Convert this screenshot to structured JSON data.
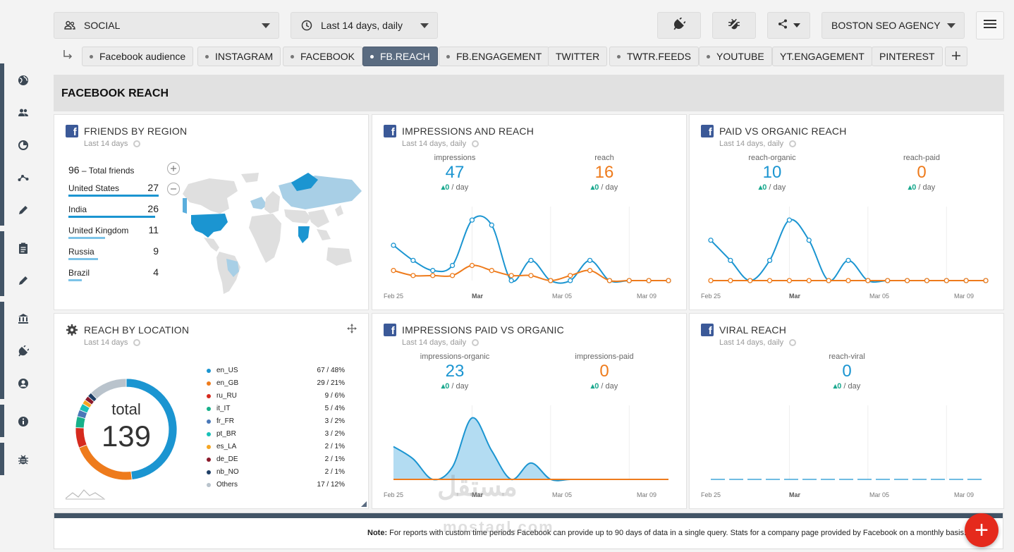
{
  "topbar": {
    "group_select": "SOCIAL",
    "period_select": "Last 14 days, daily",
    "agency_select": "BOSTON SEO AGENCY"
  },
  "tabs": [
    {
      "label": "Facebook audience",
      "dot": true,
      "active": false
    },
    {
      "label": "INSTAGRAM",
      "dot": true,
      "active": false
    },
    {
      "label": "FACEBOOK",
      "dot": true,
      "active": false
    },
    {
      "label": "FB.REACH",
      "dot": true,
      "active": true
    },
    {
      "label": "FB.ENGAGEMENT",
      "dot": true,
      "active": false
    },
    {
      "label": "TWITTER",
      "dot": false,
      "active": false
    },
    {
      "label": "TWTR.FEEDS",
      "dot": true,
      "active": false
    },
    {
      "label": "YOUTUBE",
      "dot": true,
      "active": false
    },
    {
      "label": "YT.ENGAGEMENT",
      "dot": false,
      "active": false
    },
    {
      "label": "PINTEREST",
      "dot": false,
      "active": false
    }
  ],
  "section_title": "FACEBOOK REACH",
  "panels": {
    "friends": {
      "title": "FRIENDS BY REGION",
      "sub": "Last 14 days",
      "total_value": "96",
      "total_label": "– Total friends",
      "countries": [
        {
          "name": "United States",
          "value": "27",
          "share": 1.0
        },
        {
          "name": "India",
          "value": "26",
          "share": 0.96
        },
        {
          "name": "United Kingdom",
          "value": "11",
          "share": 0.41
        },
        {
          "name": "Russia",
          "value": "9",
          "share": 0.33
        },
        {
          "name": "Brazil",
          "value": "4",
          "share": 0.15
        }
      ]
    },
    "impressions": {
      "title": "IMPRESSIONS AND REACH",
      "sub": "Last 14 days, daily",
      "m1_label": "impressions",
      "m1_value": "47",
      "m1_chg": "▴0",
      "m1_unit": " / day",
      "m2_label": "reach",
      "m2_value": "16",
      "m2_chg": "▴0",
      "m2_unit": " / day"
    },
    "paidorg": {
      "title": "PAID VS ORGANIC REACH",
      "sub": "Last 14 days, daily",
      "m1_label": "reach-organic",
      "m1_value": "10",
      "m1_chg": "▴0",
      "m1_unit": " / day",
      "m2_label": "reach-paid",
      "m2_value": "0",
      "m2_chg": "▴0",
      "m2_unit": " / day"
    },
    "location": {
      "title": "REACH BY LOCATION",
      "sub": "Last 14 days",
      "total_label": "total",
      "total_value": "139",
      "legend": [
        {
          "name": "en_US",
          "value": "67 / 48%",
          "color": "#1b95d1"
        },
        {
          "name": "en_GB",
          "value": "29 / 21%",
          "color": "#ee7b1c"
        },
        {
          "name": "ru_RU",
          "value": "9 / 6%",
          "color": "#d62a1e"
        },
        {
          "name": "it_IT",
          "value": "5 / 4%",
          "color": "#17b08a"
        },
        {
          "name": "fr_FR",
          "value": "3 / 2%",
          "color": "#4a78b8"
        },
        {
          "name": "pt_BR",
          "value": "3 / 2%",
          "color": "#18c0b8"
        },
        {
          "name": "es_LA",
          "value": "2 / 1%",
          "color": "#f5a623"
        },
        {
          "name": "de_DE",
          "value": "2 / 1%",
          "color": "#8b1a2b"
        },
        {
          "name": "nb_NO",
          "value": "2 / 1%",
          "color": "#1f3f66"
        },
        {
          "name": "Others",
          "value": "17 / 12%",
          "color": "#b9c3cc"
        }
      ]
    },
    "imppaid": {
      "title": "IMPRESSIONS PAID VS ORGANIC",
      "sub": "Last 14 days, daily",
      "m1_label": "impressions-organic",
      "m1_value": "23",
      "m1_chg": "▴0",
      "m1_unit": " / day",
      "m2_label": "impressions-paid",
      "m2_value": "0",
      "m2_chg": "▴0",
      "m2_unit": " / day"
    },
    "viral": {
      "title": "VIRAL REACH",
      "sub": "Last 14 days, daily",
      "m1_label": "reach-viral",
      "m1_value": "0",
      "m1_chg": "▴0",
      "m1_unit": " / day"
    }
  },
  "x_labels": [
    "Feb 25",
    "Mar",
    "Mar 05",
    "Mar 09"
  ],
  "chart_data": [
    {
      "type": "line",
      "title": "IMPRESSIONS AND REACH",
      "x": [
        "Feb 25",
        "Feb 26",
        "Feb 27",
        "Feb 28",
        "Feb 29",
        "Mar 01",
        "Mar 02",
        "Mar 03",
        "Mar 04",
        "Mar 05",
        "Mar 06",
        "Mar 07",
        "Mar 08",
        "Mar 09",
        "Mar 10"
      ],
      "series": [
        {
          "name": "impressions",
          "color": "#1b95d1",
          "values": [
            7,
            4,
            2,
            3,
            12,
            11,
            0,
            4,
            0,
            0,
            4,
            0,
            0,
            0,
            0
          ]
        },
        {
          "name": "reach",
          "color": "#ee7b1c",
          "values": [
            2,
            1,
            1,
            1,
            3,
            2,
            1,
            1,
            0,
            1,
            2,
            0,
            0,
            0,
            0
          ]
        }
      ],
      "ylim": [
        0,
        13
      ]
    },
    {
      "type": "line",
      "title": "PAID VS ORGANIC REACH",
      "x": [
        "Feb 25",
        "Feb 26",
        "Feb 27",
        "Feb 28",
        "Feb 29",
        "Mar 01",
        "Mar 02",
        "Mar 03",
        "Mar 04",
        "Mar 05",
        "Mar 06",
        "Mar 07",
        "Mar 08",
        "Mar 09",
        "Mar 10"
      ],
      "series": [
        {
          "name": "reach-organic",
          "color": "#1b95d1",
          "values": [
            4,
            2,
            0,
            2,
            6,
            4,
            0,
            2,
            0,
            0,
            0,
            0,
            0,
            0,
            0
          ]
        },
        {
          "name": "reach-paid",
          "color": "#ee7b1c",
          "values": [
            0,
            0,
            0,
            0,
            0,
            0,
            0,
            0,
            0,
            0,
            0,
            0,
            0,
            0,
            0
          ]
        }
      ],
      "ylim": [
        0,
        6.5
      ]
    },
    {
      "type": "area",
      "title": "IMPRESSIONS PAID VS ORGANIC",
      "x": [
        "Feb 25",
        "Feb 26",
        "Feb 27",
        "Feb 28",
        "Feb 29",
        "Mar 01",
        "Mar 02",
        "Mar 03",
        "Mar 04",
        "Mar 05",
        "Mar 06",
        "Mar 07",
        "Mar 08",
        "Mar 09",
        "Mar 10"
      ],
      "series": [
        {
          "name": "impressions-organic",
          "color": "#1b95d1",
          "values": [
            8,
            5,
            0,
            3,
            15,
            7,
            0,
            4,
            0,
            0,
            0,
            0,
            0,
            0,
            0
          ]
        },
        {
          "name": "impressions-paid",
          "color": "#ee7b1c",
          "values": [
            0,
            0,
            0,
            0,
            0,
            0,
            0,
            0,
            0,
            0,
            0,
            0,
            0,
            0,
            0
          ]
        }
      ],
      "ylim": [
        0,
        16
      ]
    },
    {
      "type": "line",
      "title": "VIRAL REACH",
      "x": [
        "Feb 25",
        "Feb 26",
        "Feb 27",
        "Feb 28",
        "Feb 29",
        "Mar 01",
        "Mar 02",
        "Mar 03",
        "Mar 04",
        "Mar 05",
        "Mar 06",
        "Mar 07",
        "Mar 08",
        "Mar 09",
        "Mar 10"
      ],
      "series": [
        {
          "name": "reach-viral",
          "color": "#1b95d1",
          "values": [
            0,
            0,
            0,
            0,
            0,
            0,
            0,
            0,
            0,
            0,
            0,
            0,
            0,
            0,
            0
          ]
        }
      ],
      "ylim": [
        0,
        1
      ]
    },
    {
      "type": "pie",
      "title": "REACH BY LOCATION",
      "categories": [
        "en_US",
        "en_GB",
        "ru_RU",
        "it_IT",
        "fr_FR",
        "pt_BR",
        "es_LA",
        "de_DE",
        "nb_NO",
        "Others"
      ],
      "values": [
        67,
        29,
        9,
        5,
        3,
        3,
        2,
        2,
        2,
        17
      ]
    }
  ],
  "footer": {
    "note_label": "Note:",
    "note_text": " For reports with custom time periods Facebook can provide up to 90 days of data in a single query. Stats for a company page provided by Facebook on a monthly basis."
  },
  "fab_label": "+"
}
